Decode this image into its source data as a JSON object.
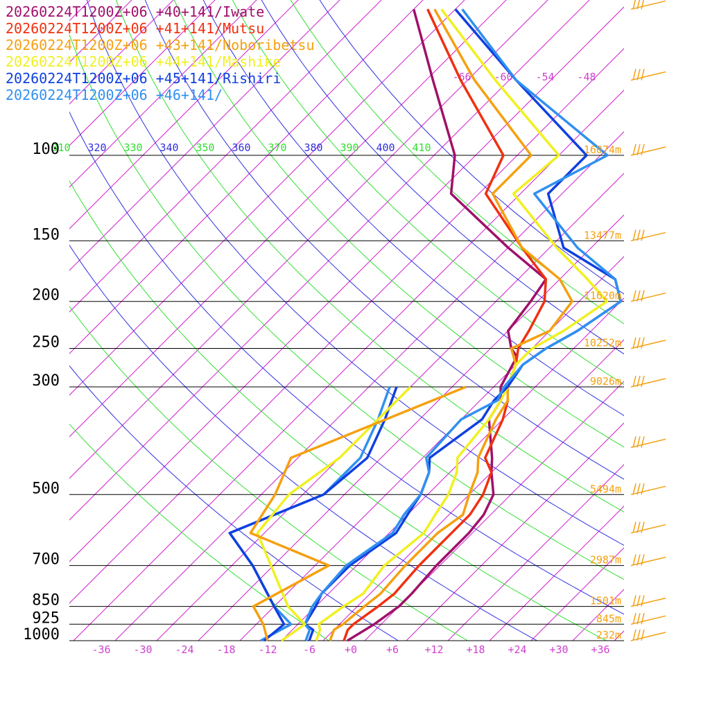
{
  "legend": [
    {
      "text": "20260224T1200Z+06 +40+141/Iwate",
      "color": "#a0106a"
    },
    {
      "text": "20260224T1200Z+06 +41+141/Mutsu",
      "color": "#f03010"
    },
    {
      "text": "20260224T1200Z+06 +43+141/Noboribetsu",
      "color": "#f5a010"
    },
    {
      "text": "20260224T1200Z+06 +44+141/Mashike",
      "color": "#f0f020"
    },
    {
      "text": "20260224T1200Z+06 +45+141/Rishiri",
      "color": "#1040e0"
    },
    {
      "text": "20260224T1200Z+06 +46+141/",
      "color": "#3090f0"
    }
  ],
  "chart_data": {
    "type": "line",
    "chart_kind": "skew-T log-P sounding",
    "y_axis": {
      "unit": "hPa",
      "pressure_labels": [
        "100",
        "150",
        "200",
        "250",
        "300",
        "500",
        "700",
        "850",
        "925",
        "1000"
      ],
      "pressure_values": [
        100,
        150,
        200,
        250,
        300,
        500,
        700,
        850,
        925,
        1000
      ],
      "height_labels": [
        "16074m",
        "13477m",
        "11620m",
        "10252m",
        "9026m",
        "5494m",
        "2987m",
        "1501m",
        "845m",
        "232m"
      ]
    },
    "x_axis": {
      "ticks": [
        -36,
        -30,
        -24,
        -18,
        -12,
        -6,
        0,
        6,
        12,
        18,
        24,
        30,
        36
      ],
      "tick_labels": [
        "-36",
        "-30",
        "-24",
        "-18",
        "-12",
        "-6",
        "+0",
        "+6",
        "+12",
        "+18",
        "+24",
        "+30",
        "+36"
      ]
    },
    "top_temperature_labels": [
      "-66",
      "-60",
      "-54",
      "-48"
    ],
    "theta_labels": [
      "310",
      "320",
      "330",
      "340",
      "350",
      "360",
      "370",
      "380",
      "390",
      "400",
      "410"
    ],
    "series": [
      {
        "color": "#a0106a",
        "kind": "temperature",
        "points": [
          [
            -0.5,
            1000
          ],
          [
            0.5,
            950
          ],
          [
            1,
            925
          ],
          [
            2,
            850
          ],
          [
            2,
            800
          ],
          [
            1.5,
            700
          ],
          [
            1.5,
            600
          ],
          [
            1,
            550
          ],
          [
            -0.5,
            500
          ],
          [
            -4,
            450
          ],
          [
            -6,
            420
          ],
          [
            -12,
            350
          ],
          [
            -13,
            320
          ],
          [
            -15,
            300
          ],
          [
            -17,
            260
          ],
          [
            -19,
            250
          ],
          [
            -22,
            230
          ],
          [
            -23,
            200
          ],
          [
            -24,
            180
          ],
          [
            -34,
            155
          ],
          [
            -50,
            120
          ],
          [
            -55,
            100
          ],
          [
            -69,
            70
          ],
          [
            -82,
            50
          ]
        ]
      },
      {
        "color": "#f03010",
        "kind": "temperature",
        "points": [
          [
            -1,
            1000
          ],
          [
            -2,
            950
          ],
          [
            -2,
            925
          ],
          [
            -1,
            850
          ],
          [
            -0.5,
            800
          ],
          [
            -1,
            700
          ],
          [
            -1,
            600
          ],
          [
            -1,
            550
          ],
          [
            -2,
            500
          ],
          [
            -4,
            450
          ],
          [
            -7,
            420
          ],
          [
            -10,
            350
          ],
          [
            -12,
            320
          ],
          [
            -14,
            300
          ],
          [
            -16,
            270
          ],
          [
            -18,
            250
          ],
          [
            -19,
            230
          ],
          [
            -21,
            200
          ],
          [
            -24,
            180
          ],
          [
            -32,
            155
          ],
          [
            -45,
            120
          ],
          [
            -48,
            100
          ],
          [
            -65,
            70
          ],
          [
            -80,
            50
          ]
        ]
      },
      {
        "color": "#f5a010",
        "kind": "temperature",
        "points": [
          [
            -3,
            1000
          ],
          [
            -4,
            950
          ],
          [
            -3.5,
            925
          ],
          [
            -3,
            850
          ],
          [
            -2.5,
            800
          ],
          [
            -3,
            700
          ],
          [
            -3,
            600
          ],
          [
            -2,
            550
          ],
          [
            -4,
            500
          ],
          [
            -6,
            450
          ],
          [
            -8,
            420
          ],
          [
            -11,
            350
          ],
          [
            -12,
            320
          ],
          [
            -14,
            300
          ],
          [
            -16,
            270
          ],
          [
            -19,
            250
          ],
          [
            -16,
            230
          ],
          [
            -17,
            200
          ],
          [
            -22,
            180
          ],
          [
            -32,
            155
          ],
          [
            -44,
            120
          ],
          [
            -44,
            100
          ],
          [
            -63,
            70
          ],
          [
            -79,
            50
          ]
        ]
      },
      {
        "color": "#f0f020",
        "kind": "temperature",
        "points": [
          [
            -5,
            1000
          ],
          [
            -6,
            950
          ],
          [
            -7,
            925
          ],
          [
            -6,
            850
          ],
          [
            -5,
            800
          ],
          [
            -6,
            700
          ],
          [
            -5,
            600
          ],
          [
            -6,
            550
          ],
          [
            -7,
            500
          ],
          [
            -9,
            450
          ],
          [
            -11,
            420
          ],
          [
            -12,
            350
          ],
          [
            -13,
            320
          ],
          [
            -14,
            300
          ],
          [
            -16,
            270
          ],
          [
            -16,
            250
          ],
          [
            -14,
            230
          ],
          [
            -12,
            200
          ],
          [
            -18,
            180
          ],
          [
            -27,
            155
          ],
          [
            -41,
            120
          ],
          [
            -40,
            100
          ],
          [
            -60,
            70
          ],
          [
            -78,
            50
          ]
        ]
      },
      {
        "color": "#1040e0",
        "kind": "temperature",
        "points": [
          [
            -6,
            1000
          ],
          [
            -7,
            950
          ],
          [
            -9,
            925
          ],
          [
            -10,
            850
          ],
          [
            -11,
            800
          ],
          [
            -11,
            700
          ],
          [
            -9,
            600
          ],
          [
            -10,
            550
          ],
          [
            -11,
            500
          ],
          [
            -13,
            450
          ],
          [
            -15,
            420
          ],
          [
            -13,
            350
          ],
          [
            -14,
            320
          ],
          [
            -14,
            300
          ],
          [
            -15,
            270
          ],
          [
            -14,
            250
          ],
          [
            -12,
            230
          ],
          [
            -10,
            200
          ],
          [
            -14,
            180
          ],
          [
            -26,
            155
          ],
          [
            -36,
            120
          ],
          [
            -36,
            100
          ],
          [
            -57,
            70
          ],
          [
            -76,
            50
          ]
        ]
      },
      {
        "color": "#3090f0",
        "kind": "temperature",
        "points": [
          [
            -6.5,
            1000
          ],
          [
            -7.5,
            950
          ],
          [
            -9,
            925
          ],
          [
            -10.5,
            850
          ],
          [
            -11,
            800
          ],
          [
            -11.5,
            700
          ],
          [
            -9.5,
            600
          ],
          [
            -10.5,
            550
          ],
          [
            -11,
            500
          ],
          [
            -13,
            450
          ],
          [
            -15.5,
            420
          ],
          [
            -16,
            350
          ],
          [
            -13.5,
            320
          ],
          [
            -14.5,
            300
          ],
          [
            -15,
            270
          ],
          [
            -14,
            250
          ],
          [
            -12,
            230
          ],
          [
            -10,
            200
          ],
          [
            -14,
            180
          ],
          [
            -24,
            155
          ],
          [
            -38,
            120
          ],
          [
            -33,
            100
          ],
          [
            -57,
            70
          ],
          [
            -75,
            50
          ]
        ]
      },
      {
        "color": "#3090f0",
        "kind": "dewpoint",
        "points": [
          [
            -13,
            1000
          ],
          [
            -11,
            925
          ],
          [
            -16,
            850
          ],
          [
            -25,
            700
          ],
          [
            -33,
            600
          ],
          [
            -25,
            500
          ],
          [
            -25,
            420
          ],
          [
            -28,
            350
          ],
          [
            -31,
            300
          ]
        ]
      },
      {
        "color": "#1040e0",
        "kind": "dewpoint",
        "points": [
          [
            -12.5,
            1000
          ],
          [
            -12,
            925
          ],
          [
            -16,
            850
          ],
          [
            -25,
            700
          ],
          [
            -33,
            600
          ],
          [
            -25,
            500
          ],
          [
            -24,
            420
          ],
          [
            -27,
            350
          ],
          [
            -30,
            300
          ]
        ]
      },
      {
        "color": "#f0f020",
        "kind": "dewpoint",
        "points": [
          [
            -10,
            1000
          ],
          [
            -9,
            925
          ],
          [
            -14,
            850
          ],
          [
            -29,
            600
          ],
          [
            -30,
            500
          ],
          [
            -28,
            420
          ],
          [
            -28,
            350
          ],
          [
            -28,
            300
          ]
        ]
      },
      {
        "color": "#f5a010",
        "kind": "dewpoint",
        "points": [
          [
            -12,
            1000
          ],
          [
            -15,
            925
          ],
          [
            -19,
            850
          ],
          [
            -14,
            700
          ],
          [
            -30,
            600
          ],
          [
            -32,
            500
          ],
          [
            -35,
            420
          ],
          [
            -20,
            300
          ]
        ]
      }
    ],
    "wind_barbs": [
      {
        "pressure": 1000,
        "shape": "calm-ish"
      },
      {
        "pressure": 925,
        "shape": "barb"
      },
      {
        "pressure": 850,
        "shape": "barb"
      },
      {
        "pressure": 700,
        "shape": "barb"
      },
      {
        "pressure": 600,
        "shape": "barb"
      },
      {
        "pressure": 500,
        "shape": "barb"
      },
      {
        "pressure": 400,
        "shape": "barb"
      },
      {
        "pressure": 300,
        "shape": "barb"
      },
      {
        "pressure": 250,
        "shape": "barb"
      },
      {
        "pressure": 200,
        "shape": "barb"
      },
      {
        "pressure": 150,
        "shape": "barb"
      },
      {
        "pressure": 100,
        "shape": "barb"
      },
      {
        "pressure": 70,
        "shape": "barb"
      },
      {
        "pressure": 50,
        "shape": "barb"
      }
    ],
    "colors": {
      "isotherm": "#d020d0",
      "dry_adiabat_green": "#30e030",
      "dry_adiabat_blue": "#3030e0",
      "isobar": "#000000",
      "height_label": "#f5a010",
      "wind_barb": "#f5a010",
      "axis_tick": "#d040d0"
    }
  }
}
